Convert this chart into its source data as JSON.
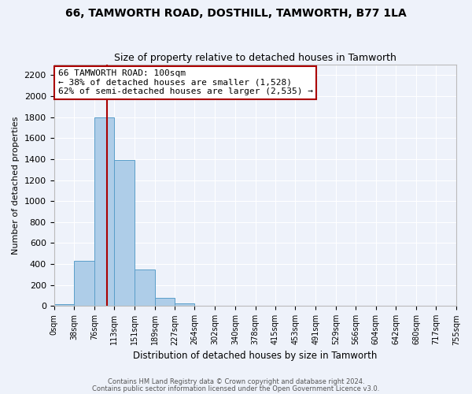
{
  "title_line1": "66, TAMWORTH ROAD, DOSTHILL, TAMWORTH, B77 1LA",
  "title_line2": "Size of property relative to detached houses in Tamworth",
  "xlabel": "Distribution of detached houses by size in Tamworth",
  "ylabel": "Number of detached properties",
  "bin_edges": [
    0,
    38,
    76,
    113,
    151,
    189,
    227,
    264,
    302,
    340,
    378,
    415,
    453,
    491,
    529,
    566,
    604,
    642,
    680,
    717,
    755
  ],
  "bin_counts": [
    20,
    430,
    1800,
    1390,
    345,
    75,
    25,
    5,
    0,
    0,
    0,
    0,
    0,
    0,
    0,
    0,
    0,
    0,
    0,
    0
  ],
  "bar_color": "#aecde8",
  "bar_edge_color": "#5a9ec9",
  "vline_x": 100,
  "vline_color": "#aa0000",
  "ylim": [
    0,
    2300
  ],
  "yticks": [
    0,
    200,
    400,
    600,
    800,
    1000,
    1200,
    1400,
    1600,
    1800,
    2000,
    2200
  ],
  "annotation_text": "66 TAMWORTH ROAD: 100sqm\n← 38% of detached houses are smaller (1,528)\n62% of semi-detached houses are larger (2,535) →",
  "annotation_box_color": "#ffffff",
  "annotation_box_edge": "#aa0000",
  "footer_line1": "Contains HM Land Registry data © Crown copyright and database right 2024.",
  "footer_line2": "Contains public sector information licensed under the Open Government Licence v3.0.",
  "background_color": "#eef2fa",
  "grid_color": "#ffffff",
  "title_fontsize": 10,
  "subtitle_fontsize": 9
}
